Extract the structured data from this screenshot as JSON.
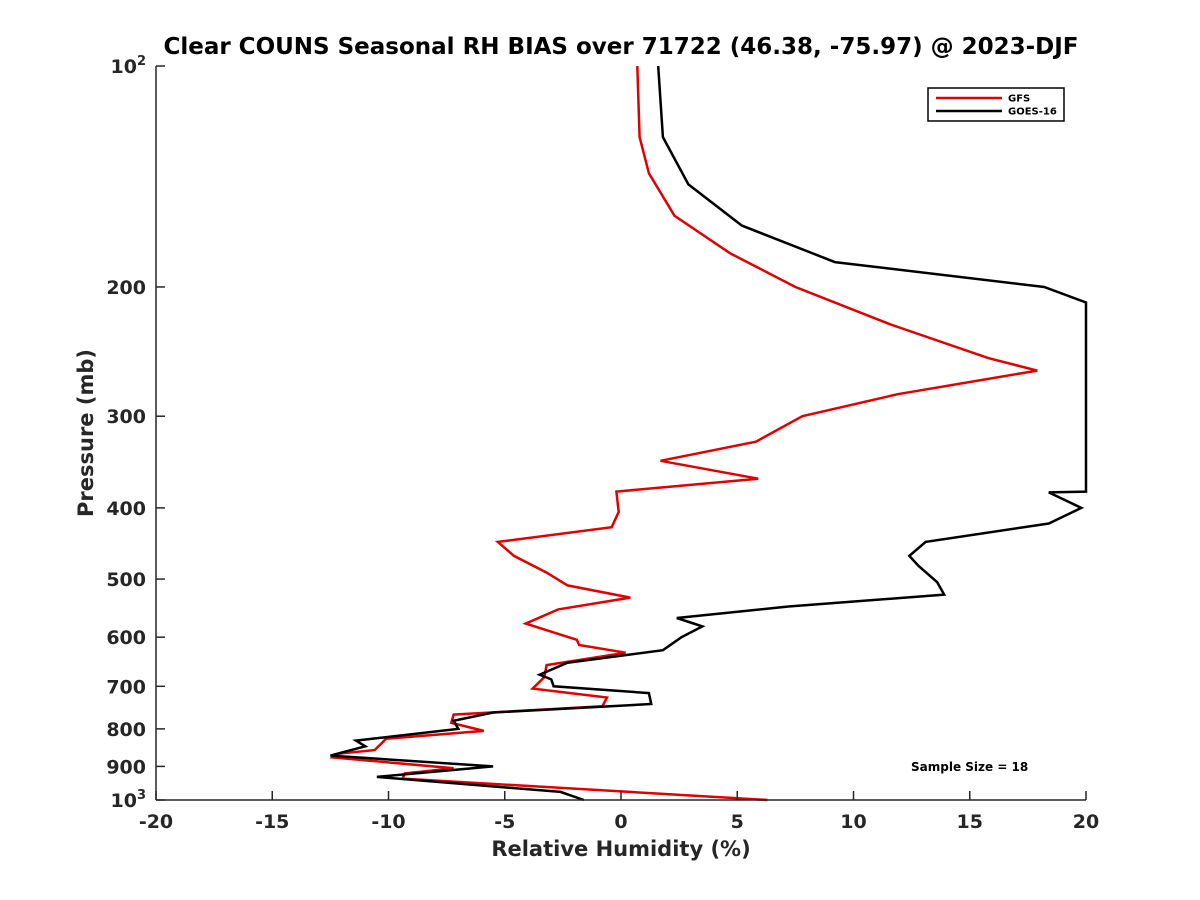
{
  "chart_data": {
    "type": "line",
    "title": "Clear COUNS Seasonal RH BIAS over 71722 (46.38, -75.97) @ 2023-DJF",
    "xlabel": "Relative Humidity (%)",
    "ylabel": "Pressure (mb)",
    "xlim": [
      -20,
      20
    ],
    "ylim": [
      1000,
      100
    ],
    "yscale": "log",
    "xticks": [
      -20,
      -15,
      -10,
      -5,
      0,
      5,
      10,
      15,
      20
    ],
    "xtick_labels": [
      "-20",
      "-15",
      "-10",
      "-5",
      "0",
      "5",
      "10",
      "15",
      "20"
    ],
    "yticks": [
      {
        "value": 100,
        "label": "10",
        "exp": "2"
      },
      {
        "value": 200,
        "label": "200",
        "exp": ""
      },
      {
        "value": 300,
        "label": "300",
        "exp": ""
      },
      {
        "value": 400,
        "label": "400",
        "exp": ""
      },
      {
        "value": 500,
        "label": "500",
        "exp": ""
      },
      {
        "value": 600,
        "label": "600",
        "exp": ""
      },
      {
        "value": 700,
        "label": "700",
        "exp": ""
      },
      {
        "value": 800,
        "label": "800",
        "exp": ""
      },
      {
        "value": 900,
        "label": "900",
        "exp": ""
      },
      {
        "value": 1000,
        "label": "10",
        "exp": "3"
      }
    ],
    "legend_position": "top-right",
    "annotation": "Sample Size = 18",
    "series": [
      {
        "name": "GFS",
        "color": "#e00000",
        "points": [
          [
            0.7,
            100
          ],
          [
            0.8,
            125
          ],
          [
            1.2,
            140
          ],
          [
            2.3,
            160
          ],
          [
            4.7,
            180
          ],
          [
            7.5,
            200
          ],
          [
            11.6,
            225
          ],
          [
            15.8,
            250
          ],
          [
            17.9,
            260
          ],
          [
            11.9,
            280
          ],
          [
            7.8,
            300
          ],
          [
            5.8,
            325
          ],
          [
            1.7,
            345
          ],
          [
            5.9,
            365
          ],
          [
            -0.2,
            380
          ],
          [
            -0.1,
            405
          ],
          [
            -0.4,
            425
          ],
          [
            -5.3,
            445
          ],
          [
            -4.6,
            465
          ],
          [
            -3.2,
            490
          ],
          [
            -2.3,
            510
          ],
          [
            0.4,
            530
          ],
          [
            -2.7,
            550
          ],
          [
            -4.1,
            575
          ],
          [
            -1.9,
            605
          ],
          [
            -1.8,
            615
          ],
          [
            0.2,
            630
          ],
          [
            -3.2,
            655
          ],
          [
            -3.3,
            680
          ],
          [
            -3.8,
            705
          ],
          [
            -0.6,
            725
          ],
          [
            -0.8,
            745
          ],
          [
            -7.2,
            765
          ],
          [
            -7.3,
            785
          ],
          [
            -5.9,
            805
          ],
          [
            -10.1,
            825
          ],
          [
            -10.6,
            855
          ],
          [
            -12.2,
            865
          ],
          [
            -12.4,
            875
          ],
          [
            -7.2,
            905
          ],
          [
            -9.3,
            920
          ],
          [
            -9.4,
            935
          ],
          [
            6.3,
            1000
          ]
        ]
      },
      {
        "name": "GOES-16",
        "color": "#000000",
        "points": [
          [
            1.6,
            100
          ],
          [
            1.8,
            125
          ],
          [
            2.9,
            145
          ],
          [
            5.2,
            165
          ],
          [
            9.2,
            185
          ],
          [
            18.2,
            200
          ],
          [
            20.0,
            210
          ],
          [
            20.0,
            380
          ],
          [
            18.4,
            381
          ],
          [
            19.8,
            400
          ],
          [
            18.4,
            420
          ],
          [
            13.1,
            445
          ],
          [
            12.4,
            465
          ],
          [
            12.8,
            480
          ],
          [
            13.6,
            505
          ],
          [
            13.9,
            525
          ],
          [
            7.2,
            545
          ],
          [
            2.4,
            565
          ],
          [
            3.5,
            580
          ],
          [
            2.6,
            600
          ],
          [
            1.8,
            625
          ],
          [
            -2.3,
            650
          ],
          [
            -3.5,
            675
          ],
          [
            -3.0,
            685
          ],
          [
            -2.9,
            700
          ],
          [
            1.2,
            715
          ],
          [
            1.3,
            740
          ],
          [
            -5.5,
            760
          ],
          [
            -7.2,
            780
          ],
          [
            -7.0,
            800
          ],
          [
            -11.4,
            830
          ],
          [
            -11.0,
            845
          ],
          [
            -12.5,
            870
          ],
          [
            -5.5,
            900
          ],
          [
            -10.5,
            930
          ],
          [
            -2.6,
            975
          ],
          [
            -1.6,
            1000
          ]
        ]
      }
    ]
  }
}
